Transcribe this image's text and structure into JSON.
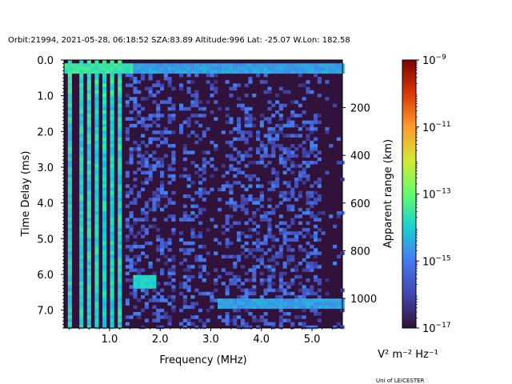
{
  "chart_data": {
    "type": "heatmap",
    "title": "Orbit:21994, 2021-05-28, 06:18:52 SZA:83.89 Altitude:996 Lat: -25.07 W.Lon: 182.58",
    "xlabel": "Frequency (MHz)",
    "ylabel": "Time Delay (ms)",
    "y2label": "Apparent range (km)",
    "xlim": [
      0.1,
      5.6
    ],
    "ylim": [
      7.5,
      0.0
    ],
    "x_ticks": [
      1.0,
      2.0,
      3.0,
      4.0,
      5.0
    ],
    "x_tick_labels": [
      "1.0",
      "2.0",
      "3.0",
      "4.0",
      "5.0"
    ],
    "y_ticks": [
      0.0,
      1.0,
      2.0,
      3.0,
      4.0,
      5.0,
      6.0,
      7.0
    ],
    "y_tick_labels": [
      "0.0",
      "1.0",
      "2.0",
      "3.0",
      "4.0",
      "5.0",
      "6.0",
      "7.0"
    ],
    "y2_ticks_km": [
      200,
      400,
      600,
      800,
      1000
    ],
    "y2_tick_labels": [
      "200",
      "400",
      "600",
      "800",
      "1000"
    ],
    "km_per_ms": 149.9,
    "colorbar": {
      "colormap": "turbo",
      "scale": "log",
      "range": [
        1e-17,
        1e-09
      ],
      "tick_exponents": [
        -17,
        -15,
        -13,
        -11,
        -9
      ],
      "tick_base": "10",
      "unit_label": "V² m⁻² Hz⁻¹"
    },
    "features": [
      {
        "name": "surface echo band",
        "delay_ms": [
          0.13,
          0.33
        ],
        "freq_mhz": [
          0.1,
          5.6
        ],
        "level_log10": -14.5
      },
      {
        "name": "low-frequency vertical streaks",
        "freq_mhz": [
          0.1,
          1.3
        ],
        "level_log10": -14.0
      },
      {
        "name": "echo patch",
        "delay_ms": 6.15,
        "freq_mhz": [
          1.5,
          1.9
        ],
        "level_log10": -14.2
      },
      {
        "name": "echo trace",
        "delay_ms": 6.8,
        "freq_mhz": [
          3.1,
          5.6
        ],
        "level_log10": -14.8
      }
    ]
  },
  "credit": "Uni of LEICESTER"
}
